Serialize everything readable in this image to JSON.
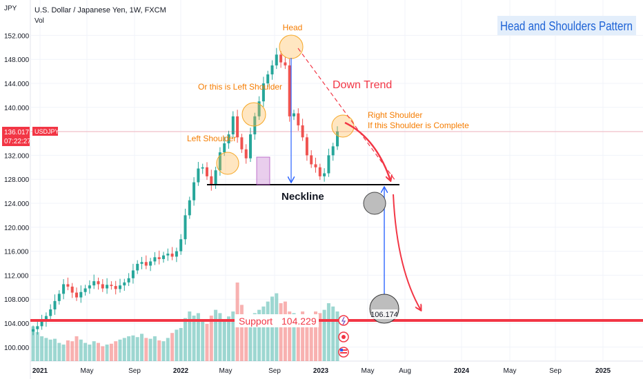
{
  "header": {
    "y_unit": "JPY",
    "symbol_title": "U.S. Dollar / Japanese Yen, 1W, FXCM",
    "volume_label": "Vol"
  },
  "title_box": {
    "text": "Head and Shoulders Pattern",
    "color": "#1e63d6",
    "bg": "#e3eefb"
  },
  "price_label": {
    "value": "136.017",
    "timer": "07:22:27",
    "symbol": "USDJPY",
    "color": "#f23645"
  },
  "annotations": {
    "head": "Head",
    "left_shoulder_alt": "Or this is Left Shoulder",
    "left_shoulder": "Left Shoulder",
    "right_shoulder": "Right Shoulder",
    "right_shoulder_note": "If this Shoulder is Complete",
    "down_trend": "Down Trend",
    "neckline": "Neckline",
    "support": "Support",
    "support_value": "104.229",
    "target_value": "106.174"
  },
  "colors": {
    "up": "#26a69a",
    "down": "#ef5350",
    "annotation": "#f57c00",
    "trend": "#f23645",
    "support": "#f23645",
    "arrow_blue": "#2962ff"
  },
  "chart_data": {
    "type": "candlestick",
    "ylabel": "JPY",
    "ylim": [
      97,
      155
    ],
    "y_ticks": [
      "152.000",
      "148.000",
      "144.000",
      "140.000",
      "136.000",
      "132.000",
      "128.000",
      "124.000",
      "120.000",
      "116.000",
      "112.000",
      "108.000",
      "104.000",
      "100.000"
    ],
    "x_ticks": [
      "2021",
      "May",
      "Sep",
      "2022",
      "May",
      "Sep",
      "2023",
      "May",
      "Aug",
      "2024",
      "May",
      "Sep",
      "2025"
    ],
    "close_path": [
      103.0,
      103.5,
      104.3,
      105.2,
      106.3,
      107.7,
      108.9,
      110.5,
      110.1,
      109.1,
      108.3,
      109.2,
      109.8,
      110.3,
      111.0,
      110.5,
      109.8,
      110.4,
      110.2,
      109.7,
      110.3,
      110.8,
      111.5,
      112.8,
      113.9,
      114.2,
      113.6,
      114.3,
      115.0,
      114.7,
      115.3,
      115.6,
      115.1,
      116.0,
      118.0,
      122.0,
      124.5,
      127.5,
      129.8,
      130.0,
      128.5,
      127.0,
      129.5,
      132.5,
      134.0,
      135.5,
      138.5,
      135.0,
      133.0,
      131.5,
      135.5,
      138.5,
      141.0,
      144.0,
      145.5,
      147.0,
      148.8,
      147.5,
      147.0,
      138.5,
      139.0,
      137.0,
      135.0,
      132.0,
      130.5,
      130.0,
      128.5,
      129.0,
      132.0,
      133.5,
      136.0
    ],
    "volume_relative": [
      0.42,
      0.35,
      0.3,
      0.28,
      0.26,
      0.27,
      0.22,
      0.2,
      0.25,
      0.24,
      0.3,
      0.26,
      0.22,
      0.2,
      0.24,
      0.22,
      0.18,
      0.2,
      0.21,
      0.24,
      0.26,
      0.28,
      0.3,
      0.31,
      0.29,
      0.33,
      0.28,
      0.27,
      0.3,
      0.25,
      0.24,
      0.28,
      0.34,
      0.38,
      0.4,
      0.52,
      0.6,
      0.55,
      0.58,
      0.5,
      0.45,
      0.55,
      0.62,
      0.58,
      0.5,
      0.54,
      0.6,
      0.95,
      0.68,
      0.55,
      0.5,
      0.58,
      0.62,
      0.66,
      0.72,
      0.78,
      0.82,
      0.7,
      0.72,
      0.6,
      0.58,
      0.55,
      0.6,
      0.52,
      0.56,
      0.6,
      0.58,
      0.62,
      0.7,
      0.66,
      0.6
    ],
    "neckline": 127.0,
    "support": 104.229,
    "target": 106.174,
    "current_price": 136.017
  }
}
